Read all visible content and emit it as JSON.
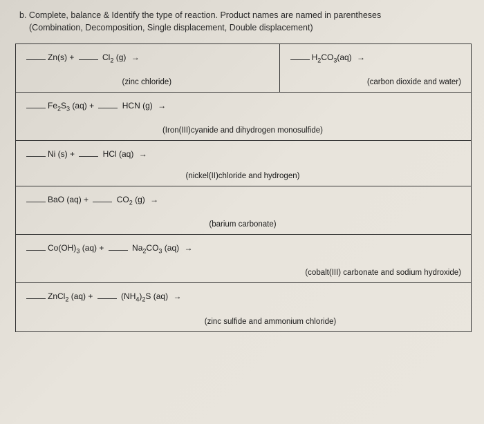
{
  "header": {
    "ident": "b.",
    "line1": "Complete, balance & Identify the type of reaction.  Product names are named in parentheses",
    "line2": "(Combination, Decomposition, Single displacement, Double displacement)"
  },
  "rows": [
    {
      "type": "split",
      "left": {
        "eq_html": "Zn(s)  +  <blank> Cl<sub>2</sub> (g)  →",
        "product": "(zinc chloride)"
      },
      "right": {
        "eq_html": "H<sub>2</sub>CO<sub>3</sub>(aq)   →",
        "product": "(carbon dioxide and water)"
      }
    },
    {
      "type": "full",
      "eq_html": "Fe<sub>2</sub>S<sub>3</sub> (aq)   +  <blank> HCN (g)  →",
      "product": "(Iron(III)cyanide and dihydrogen monosulfide)"
    },
    {
      "type": "full",
      "eq_html": "Ni (s)   +  <blank> HCl (aq)  →",
      "product": "(nickel(II)chloride and hydrogen)"
    },
    {
      "type": "full",
      "eq_html": "BaO (aq)   +  <blank> CO<sub>2</sub> (g)  →",
      "product": "(barium carbonate)",
      "product_align": "center"
    },
    {
      "type": "full",
      "eq_html": "Co(OH)<sub>3</sub> (aq)   +  <blank> Na<sub>2</sub>CO<sub>3</sub> (aq)  →",
      "product": "(cobalt(III) carbonate and sodium hydroxide)"
    },
    {
      "type": "full",
      "eq_html": "ZnCl<sub>2</sub> (aq)   +  <blank> (NH<sub>4</sub>)<sub>2</sub>S (aq)  →",
      "product": "(zinc sulfide and ammonium chloride)"
    }
  ]
}
